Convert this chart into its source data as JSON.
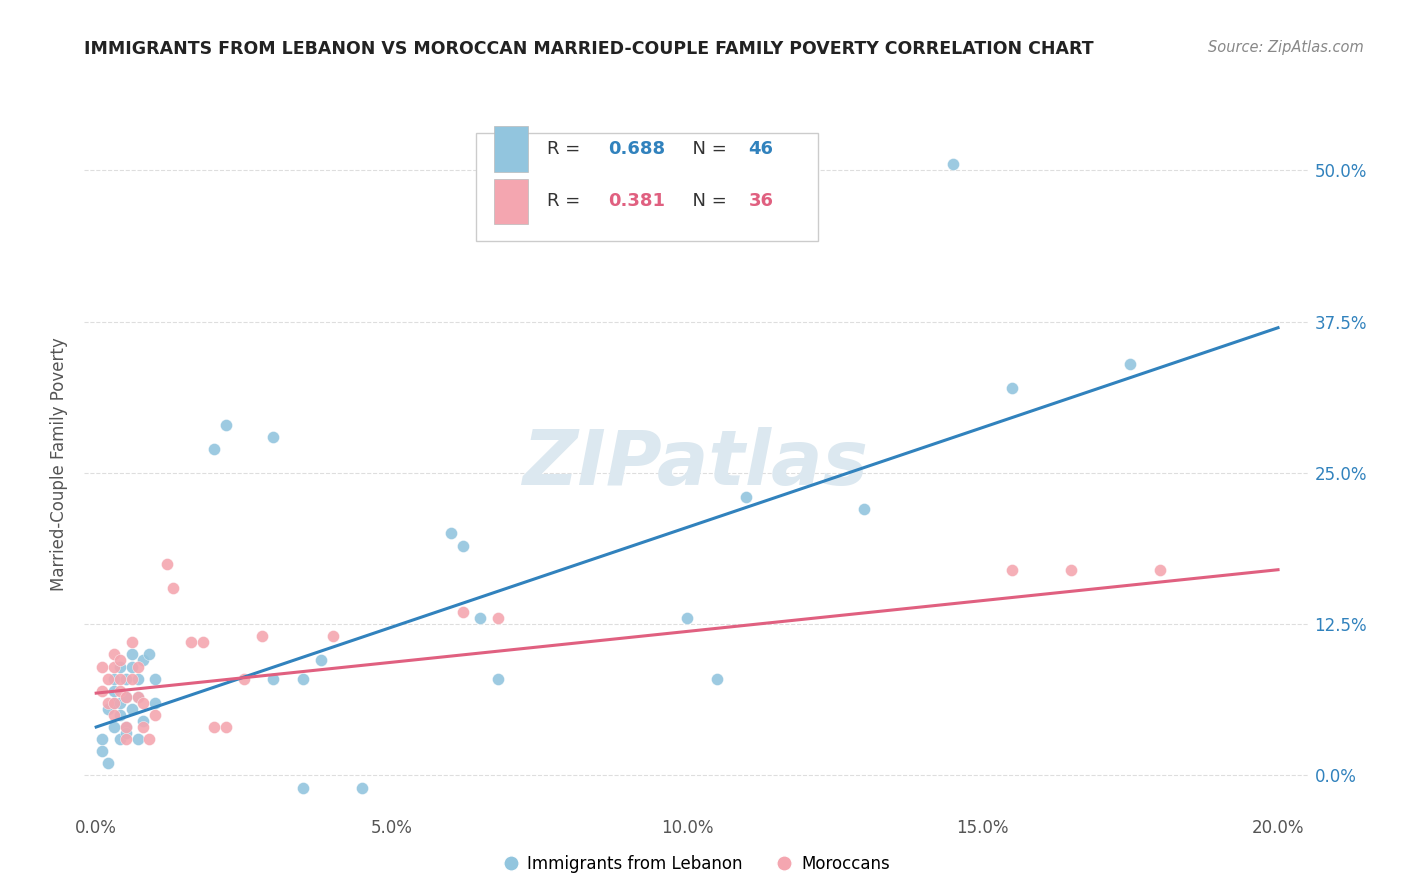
{
  "title": "IMMIGRANTS FROM LEBANON VS MOROCCAN MARRIED-COUPLE FAMILY POVERTY CORRELATION CHART",
  "source": "Source: ZipAtlas.com",
  "ylabel": "Married-Couple Family Poverty",
  "ytick_vals": [
    0.0,
    0.125,
    0.25,
    0.375,
    0.5
  ],
  "xtick_vals": [
    0.0,
    0.05,
    0.1,
    0.15,
    0.2
  ],
  "xlim": [
    -0.002,
    0.205
  ],
  "ylim": [
    -0.03,
    0.545
  ],
  "legend_blue_label": "Immigrants from Lebanon",
  "legend_pink_label": "Moroccans",
  "R_blue": 0.688,
  "N_blue": 46,
  "R_pink": 0.381,
  "N_pink": 36,
  "watermark": "ZIPatlas",
  "blue_color": "#92c5de",
  "pink_color": "#f4a6b0",
  "blue_line_color": "#3182bd",
  "pink_line_color": "#e06080",
  "title_color": "#222222",
  "source_color": "#888888",
  "ylabel_color": "#555555",
  "tick_color": "#555555",
  "grid_color": "#dedede",
  "right_tick_color": "#3182bd",
  "blue_scatter": [
    [
      0.001,
      0.02
    ],
    [
      0.001,
      0.03
    ],
    [
      0.002,
      0.01
    ],
    [
      0.002,
      0.055
    ],
    [
      0.003,
      0.06
    ],
    [
      0.003,
      0.04
    ],
    [
      0.003,
      0.07
    ],
    [
      0.003,
      0.08
    ],
    [
      0.004,
      0.05
    ],
    [
      0.004,
      0.03
    ],
    [
      0.004,
      0.09
    ],
    [
      0.004,
      0.06
    ],
    [
      0.005,
      0.065
    ],
    [
      0.005,
      0.08
    ],
    [
      0.005,
      0.04
    ],
    [
      0.005,
      0.035
    ],
    [
      0.006,
      0.055
    ],
    [
      0.006,
      0.09
    ],
    [
      0.006,
      0.1
    ],
    [
      0.007,
      0.08
    ],
    [
      0.007,
      0.065
    ],
    [
      0.007,
      0.03
    ],
    [
      0.008,
      0.095
    ],
    [
      0.008,
      0.045
    ],
    [
      0.009,
      0.1
    ],
    [
      0.01,
      0.06
    ],
    [
      0.01,
      0.08
    ],
    [
      0.02,
      0.27
    ],
    [
      0.022,
      0.29
    ],
    [
      0.03,
      0.28
    ],
    [
      0.03,
      0.08
    ],
    [
      0.035,
      0.08
    ],
    [
      0.035,
      -0.01
    ],
    [
      0.038,
      0.095
    ],
    [
      0.045,
      -0.01
    ],
    [
      0.06,
      0.2
    ],
    [
      0.062,
      0.19
    ],
    [
      0.065,
      0.13
    ],
    [
      0.068,
      0.08
    ],
    [
      0.1,
      0.13
    ],
    [
      0.105,
      0.08
    ],
    [
      0.11,
      0.23
    ],
    [
      0.13,
      0.22
    ],
    [
      0.145,
      0.505
    ],
    [
      0.155,
      0.32
    ],
    [
      0.175,
      0.34
    ]
  ],
  "pink_scatter": [
    [
      0.001,
      0.07
    ],
    [
      0.001,
      0.09
    ],
    [
      0.002,
      0.08
    ],
    [
      0.002,
      0.06
    ],
    [
      0.003,
      0.05
    ],
    [
      0.003,
      0.06
    ],
    [
      0.003,
      0.09
    ],
    [
      0.003,
      0.1
    ],
    [
      0.004,
      0.08
    ],
    [
      0.004,
      0.07
    ],
    [
      0.004,
      0.095
    ],
    [
      0.005,
      0.065
    ],
    [
      0.005,
      0.04
    ],
    [
      0.005,
      0.03
    ],
    [
      0.006,
      0.08
    ],
    [
      0.006,
      0.11
    ],
    [
      0.007,
      0.09
    ],
    [
      0.007,
      0.065
    ],
    [
      0.008,
      0.04
    ],
    [
      0.008,
      0.06
    ],
    [
      0.009,
      0.03
    ],
    [
      0.01,
      0.05
    ],
    [
      0.012,
      0.175
    ],
    [
      0.013,
      0.155
    ],
    [
      0.016,
      0.11
    ],
    [
      0.018,
      0.11
    ],
    [
      0.02,
      0.04
    ],
    [
      0.022,
      0.04
    ],
    [
      0.025,
      0.08
    ],
    [
      0.028,
      0.115
    ],
    [
      0.04,
      0.115
    ],
    [
      0.062,
      0.135
    ],
    [
      0.068,
      0.13
    ],
    [
      0.155,
      0.17
    ],
    [
      0.165,
      0.17
    ],
    [
      0.18,
      0.17
    ]
  ],
  "blue_trendline": [
    [
      0.0,
      0.04
    ],
    [
      0.2,
      0.37
    ]
  ],
  "pink_trendline": [
    [
      0.0,
      0.068
    ],
    [
      0.2,
      0.17
    ]
  ]
}
